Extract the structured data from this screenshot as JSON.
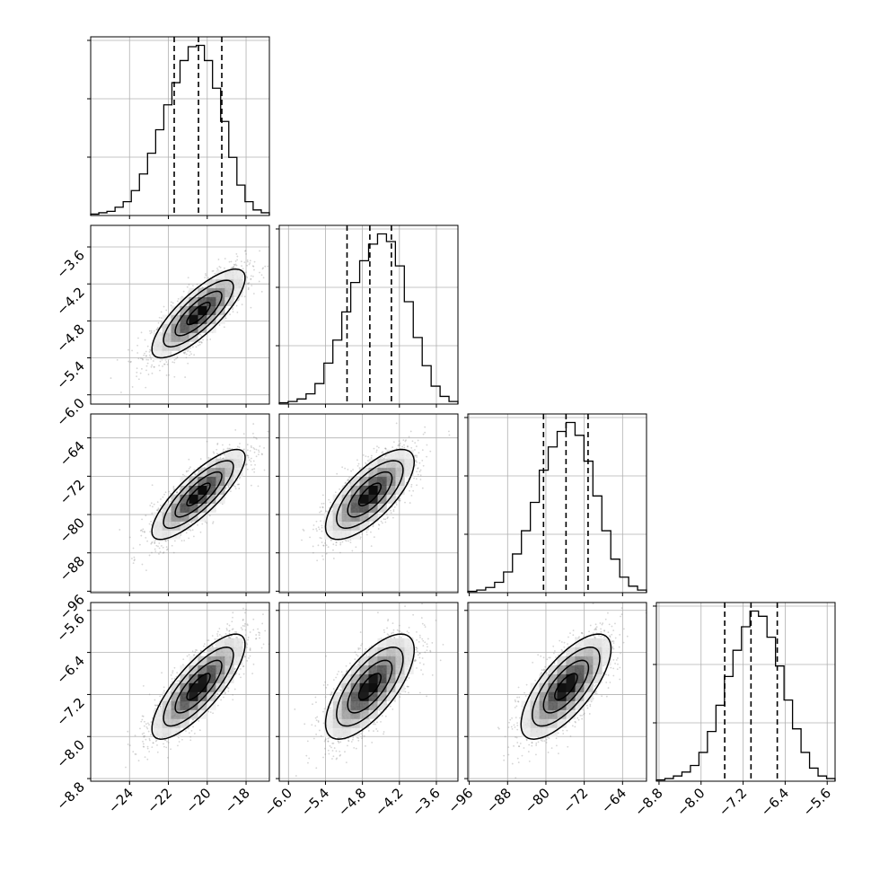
{
  "chart_data": {
    "type": "corner",
    "description_type": "corner plot of 4 parameters (1-D histograms on diagonal, 2-D density + scatter + contours below)",
    "grid": true,
    "parameters": [
      {
        "id": "p0",
        "range": [
          -26.0,
          -16.8
        ],
        "ticks": [
          -24,
          -22,
          -20,
          -18
        ],
        "tick_labels": [
          "−24",
          "−22",
          "−20",
          "−18"
        ],
        "mean": -20.45,
        "std": 1.2,
        "quantiles": {
          "q16": -21.7,
          "q50": -20.45,
          "q84": -19.25
        },
        "histogram": [
          1,
          2,
          3,
          6,
          10,
          18,
          30,
          45,
          62,
          80,
          96,
          112,
          122,
          123,
          112,
          92,
          68,
          42,
          22,
          10,
          4,
          2
        ]
      },
      {
        "id": "p1",
        "range": [
          -6.15,
          -3.25
        ],
        "ticks": [
          -6.0,
          -5.4,
          -4.8,
          -4.2,
          -3.6
        ],
        "tick_labels": [
          "−6.0",
          "−5.4",
          "−4.8",
          "−4.2",
          "−3.6"
        ],
        "mean": -4.68,
        "std": 0.36,
        "quantiles": {
          "q16": -5.05,
          "q50": -4.68,
          "q84": -4.33
        },
        "histogram": [
          1,
          2,
          4,
          8,
          16,
          32,
          50,
          72,
          95,
          112,
          125,
          133,
          127,
          108,
          80,
          52,
          30,
          14,
          6,
          2
        ]
      },
      {
        "id": "p2",
        "range": [
          -96.3,
          -59.0
        ],
        "ticks": [
          -96,
          -88,
          -80,
          -72,
          -64
        ],
        "tick_labels": [
          "−96",
          "−88",
          "−80",
          "−72",
          "−64"
        ],
        "mean": -75.8,
        "std": 4.7,
        "quantiles": {
          "q16": -80.5,
          "q50": -75.8,
          "q84": -71.2
        },
        "histogram": [
          1,
          2,
          4,
          8,
          16,
          30,
          48,
          70,
          95,
          113,
          125,
          132,
          122,
          102,
          75,
          48,
          26,
          12,
          5,
          2
        ]
      },
      {
        "id": "p3",
        "range": [
          -8.85,
          -5.45
        ],
        "ticks": [
          -8.8,
          -8.0,
          -7.2,
          -6.4,
          -5.6
        ],
        "tick_labels": [
          "−8.8",
          "−8.0",
          "−7.2",
          "−6.4",
          "−5.6"
        ],
        "mean": -7.05,
        "std": 0.5,
        "quantiles": {
          "q16": -7.55,
          "q50": -7.05,
          "q84": -6.55
        },
        "histogram": [
          1,
          2,
          4,
          7,
          12,
          22,
          38,
          58,
          80,
          100,
          118,
          130,
          126,
          110,
          88,
          62,
          40,
          22,
          10,
          4,
          2
        ]
      }
    ],
    "correlations": [
      [
        1.0,
        0.8,
        0.82,
        0.8
      ],
      [
        0.8,
        1.0,
        0.72,
        0.7
      ],
      [
        0.82,
        0.72,
        1.0,
        0.72
      ],
      [
        0.8,
        0.7,
        0.72,
        1.0
      ]
    ],
    "contour_levels_sigma": [
      0.5,
      1.0,
      1.5,
      2.0
    ],
    "colors": {
      "line": "#000000",
      "grid": "#b0b0b0",
      "points": "#888888"
    }
  }
}
